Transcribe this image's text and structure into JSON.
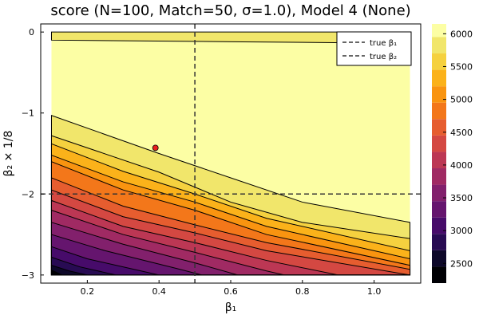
{
  "chart_data": {
    "type": "heatmap",
    "subtype": "filled-contour",
    "title": "score (N=100, Match=50, σ=1.0), Model 4 (None)",
    "xlabel": "β₁",
    "ylabel": "β₂ × 1/8",
    "xlim": [
      0.07,
      1.13
    ],
    "ylim": [
      -3.1,
      0.1
    ],
    "x_ticks": [
      {
        "value": 0.2,
        "label": "0.2"
      },
      {
        "value": 0.4,
        "label": "0.4"
      },
      {
        "value": 0.6,
        "label": "0.6"
      },
      {
        "value": 0.8,
        "label": "0.8"
      },
      {
        "value": 1.0,
        "label": "1.0"
      }
    ],
    "y_ticks": [
      {
        "value": 0,
        "label": "0"
      },
      {
        "value": -1,
        "label": "−1"
      },
      {
        "value": -2,
        "label": "−2"
      },
      {
        "value": -3,
        "label": "−3"
      }
    ],
    "colorbar": {
      "range": [
        2200,
        6150
      ],
      "ticks": [
        {
          "value": 2500,
          "label": "2500"
        },
        {
          "value": 3000,
          "label": "3000"
        },
        {
          "value": 3500,
          "label": "3500"
        },
        {
          "value": 4000,
          "label": "4000"
        },
        {
          "value": 4500,
          "label": "4500"
        },
        {
          "value": 5000,
          "label": "5000"
        },
        {
          "value": 5500,
          "label": "5500"
        },
        {
          "value": 6000,
          "label": "6000"
        }
      ],
      "levels": [
        {
          "from": 2200,
          "to": 2450,
          "color": "#000004"
        },
        {
          "from": 2450,
          "to": 2700,
          "color": "#0d0829"
        },
        {
          "from": 2700,
          "to": 2950,
          "color": "#280b53"
        },
        {
          "from": 2950,
          "to": 3200,
          "color": "#470b6a"
        },
        {
          "from": 3200,
          "to": 3450,
          "color": "#65156e"
        },
        {
          "from": 3450,
          "to": 3700,
          "color": "#82206c"
        },
        {
          "from": 3700,
          "to": 3950,
          "color": "#a02a63"
        },
        {
          "from": 3950,
          "to": 4200,
          "color": "#bc3754"
        },
        {
          "from": 4200,
          "to": 4450,
          "color": "#d44842"
        },
        {
          "from": 4450,
          "to": 4700,
          "color": "#e65d2f"
        },
        {
          "from": 4700,
          "to": 4950,
          "color": "#f3771a"
        },
        {
          "from": 4950,
          "to": 5200,
          "color": "#f99410"
        },
        {
          "from": 5200,
          "to": 5450,
          "color": "#fbb21a"
        },
        {
          "from": 5450,
          "to": 5700,
          "color": "#f5d13f"
        },
        {
          "from": 5700,
          "to": 5950,
          "color": "#f1e66b"
        },
        {
          "from": 5950,
          "to": 6150,
          "color": "#fcfea4"
        }
      ]
    },
    "contour_bands": [
      {
        "value": 6050,
        "color": "#fcfea4",
        "boundary": [
          [
            0.1,
            0.0
          ],
          [
            1.1,
            0.0
          ],
          [
            1.1,
            -0.14
          ],
          [
            0.6,
            -0.12
          ],
          [
            0.1,
            -0.1
          ]
        ]
      },
      {
        "value": 5850,
        "color": "#f1e66b",
        "boundary": [
          [
            0.1,
            -1.03
          ],
          [
            0.4,
            -1.5
          ],
          [
            0.6,
            -1.8
          ],
          [
            0.8,
            -2.1
          ],
          [
            1.1,
            -2.35
          ]
        ]
      },
      {
        "value": 5600,
        "color": "#f5d13f",
        "boundary": [
          [
            0.1,
            -1.28
          ],
          [
            0.4,
            -1.73
          ],
          [
            0.6,
            -2.1
          ],
          [
            0.8,
            -2.35
          ],
          [
            1.1,
            -2.55
          ]
        ]
      },
      {
        "value": 5300,
        "color": "#fbb21a",
        "boundary": [
          [
            0.1,
            -1.38
          ],
          [
            0.3,
            -1.72
          ],
          [
            0.5,
            -2.0
          ],
          [
            0.7,
            -2.3
          ],
          [
            1.1,
            -2.7
          ]
        ]
      },
      {
        "value": 5050,
        "color": "#f99410",
        "boundary": [
          [
            0.1,
            -1.52
          ],
          [
            0.3,
            -1.85
          ],
          [
            0.5,
            -2.1
          ],
          [
            0.7,
            -2.4
          ],
          [
            1.1,
            -2.8
          ]
        ]
      },
      {
        "value": 4800,
        "color": "#f3771a",
        "boundary": [
          [
            0.1,
            -1.6
          ],
          [
            0.3,
            -1.95
          ],
          [
            0.5,
            -2.2
          ],
          [
            0.7,
            -2.5
          ],
          [
            1.1,
            -2.88
          ]
        ]
      },
      {
        "value": 4550,
        "color": "#e65d2f",
        "boundary": [
          [
            0.1,
            -1.8
          ],
          [
            0.3,
            -2.15
          ],
          [
            0.5,
            -2.38
          ],
          [
            0.7,
            -2.6
          ],
          [
            1.1,
            -2.93
          ]
        ]
      },
      {
        "value": 4300,
        "color": "#d44842",
        "boundary": [
          [
            0.1,
            -1.95
          ],
          [
            0.3,
            -2.28
          ],
          [
            0.5,
            -2.48
          ],
          [
            0.7,
            -2.7
          ],
          [
            1.1,
            -3.0
          ]
        ]
      },
      {
        "value": 4050,
        "color": "#bc3754",
        "boundary": [
          [
            0.1,
            -2.08
          ],
          [
            0.3,
            -2.4
          ],
          [
            0.5,
            -2.6
          ],
          [
            0.7,
            -2.82
          ],
          [
            0.9,
            -3.0
          ]
        ]
      },
      {
        "value": 3800,
        "color": "#a02a63",
        "boundary": [
          [
            0.1,
            -2.2
          ],
          [
            0.3,
            -2.5
          ],
          [
            0.5,
            -2.72
          ],
          [
            0.7,
            -2.95
          ],
          [
            0.75,
            -3.0
          ]
        ]
      },
      {
        "value": 3550,
        "color": "#82206c",
        "boundary": [
          [
            0.1,
            -2.35
          ],
          [
            0.3,
            -2.62
          ],
          [
            0.5,
            -2.85
          ],
          [
            0.62,
            -3.0
          ]
        ]
      },
      {
        "value": 3300,
        "color": "#65156e",
        "boundary": [
          [
            0.1,
            -2.5
          ],
          [
            0.25,
            -2.7
          ],
          [
            0.45,
            -2.92
          ],
          [
            0.52,
            -3.0
          ]
        ]
      },
      {
        "value": 3050,
        "color": "#470b6a",
        "boundary": [
          [
            0.1,
            -2.65
          ],
          [
            0.2,
            -2.8
          ],
          [
            0.35,
            -2.95
          ],
          [
            0.4,
            -3.0
          ]
        ]
      },
      {
        "value": 2800,
        "color": "#280b53",
        "boundary": [
          [
            0.1,
            -2.78
          ],
          [
            0.18,
            -2.9
          ],
          [
            0.28,
            -3.0
          ]
        ]
      },
      {
        "value": 2550,
        "color": "#0d0829",
        "boundary": [
          [
            0.1,
            -2.88
          ],
          [
            0.15,
            -2.95
          ],
          [
            0.2,
            -3.0
          ]
        ]
      },
      {
        "value": 2300,
        "color": "#000004",
        "boundary": [
          [
            0.1,
            -2.94
          ],
          [
            0.13,
            -3.0
          ]
        ]
      }
    ],
    "reference_lines": [
      {
        "name": "true β₁",
        "orientation": "vertical",
        "value": 0.5,
        "style": "dashed"
      },
      {
        "name": "true β₂",
        "orientation": "horizontal",
        "value": -2.0,
        "style": "dashed"
      }
    ],
    "points": [
      {
        "x": 0.39,
        "y": -1.43,
        "color": "#e8201b"
      }
    ],
    "legend": {
      "position": "top-right",
      "entries": [
        {
          "label": "true β₁",
          "style": "dashed"
        },
        {
          "label": "true β₂",
          "style": "dashed"
        }
      ]
    },
    "grid": false
  }
}
